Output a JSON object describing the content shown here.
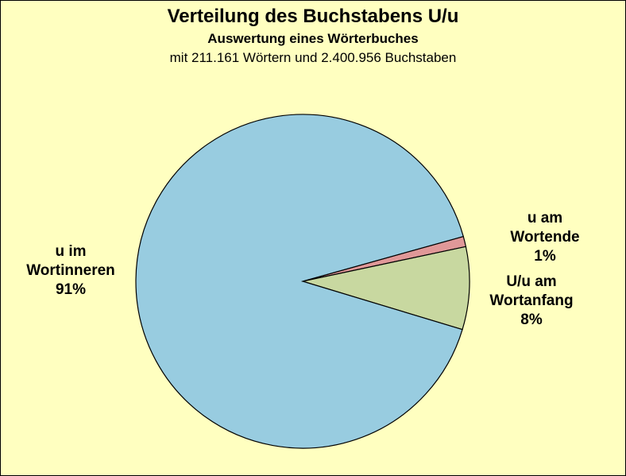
{
  "chart_data": {
    "type": "pie",
    "title": "Verteilung des Buchstabens U/u",
    "subtitle": "Auswertung eines Wörterbuches",
    "subtitle2": "mit 211.161 Wörtern und 2.400.956 Buchstaben",
    "slices": [
      {
        "label_lines": [
          "u am",
          "Wortende"
        ],
        "value": 1,
        "value_text": "1%",
        "color": "#e09898"
      },
      {
        "label_lines": [
          "U/u am",
          "Wortanfang"
        ],
        "value": 8,
        "value_text": "8%",
        "color": "#c8d8a0"
      },
      {
        "label_lines": [
          "u im",
          "Wortinneren"
        ],
        "value": 91,
        "value_text": "91%",
        "color": "#98cce0"
      }
    ],
    "colors": {
      "background": "#ffffc0",
      "border": "#000000"
    }
  }
}
